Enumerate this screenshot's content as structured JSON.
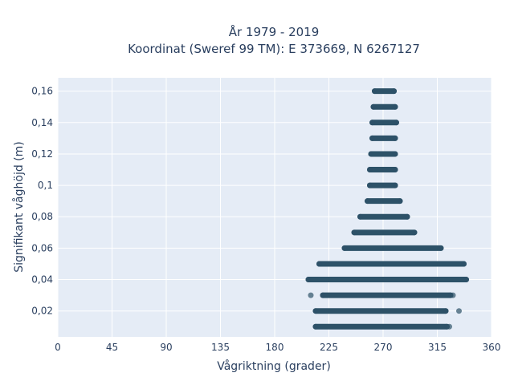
{
  "chart_data": {
    "type": "scatter",
    "title_line1": "År 1979 - 2019",
    "title_line2": "Koordinat (Sweref 99 TM): E 373669, N 6267127",
    "xlabel": "Vågriktning (grader)",
    "ylabel": "Signifikant våghöjd (m)",
    "xlim": [
      0,
      360
    ],
    "ylim": [
      0.0035,
      0.1685
    ],
    "xticks": [
      0,
      45,
      90,
      135,
      180,
      225,
      270,
      315,
      360
    ],
    "xtick_labels": [
      "0",
      "45",
      "90",
      "135",
      "180",
      "225",
      "270",
      "315",
      "360"
    ],
    "yticks": [
      0.02,
      0.04,
      0.06,
      0.08,
      0.1,
      0.12,
      0.14,
      0.16
    ],
    "ytick_labels": [
      "0,02",
      "0,04",
      "0,06",
      "0,08",
      "0,1",
      "0,12",
      "0,14",
      "0,16"
    ],
    "grid": true,
    "marker_color": "#2d5268",
    "plot_background": "#e5ecf6",
    "bands": [
      {
        "y": 0.01,
        "x_min": 214,
        "x_max": 323,
        "outliers": [
          325
        ]
      },
      {
        "y": 0.02,
        "x_min": 214,
        "x_max": 322,
        "outliers": [
          333
        ]
      },
      {
        "y": 0.03,
        "x_min": 220,
        "x_max": 326,
        "outliers": [
          210,
          328
        ]
      },
      {
        "y": 0.04,
        "x_min": 208,
        "x_max": 339,
        "outliers": []
      },
      {
        "y": 0.05,
        "x_min": 217,
        "x_max": 337,
        "outliers": []
      },
      {
        "y": 0.06,
        "x_min": 238,
        "x_max": 318,
        "outliers": []
      },
      {
        "y": 0.07,
        "x_min": 246,
        "x_max": 296,
        "outliers": []
      },
      {
        "y": 0.08,
        "x_min": 251,
        "x_max": 290,
        "outliers": []
      },
      {
        "y": 0.09,
        "x_min": 257,
        "x_max": 284,
        "outliers": []
      },
      {
        "y": 0.1,
        "x_min": 259,
        "x_max": 280,
        "outliers": []
      },
      {
        "y": 0.11,
        "x_min": 259,
        "x_max": 280,
        "outliers": []
      },
      {
        "y": 0.12,
        "x_min": 260,
        "x_max": 280,
        "outliers": []
      },
      {
        "y": 0.13,
        "x_min": 261,
        "x_max": 280,
        "outliers": []
      },
      {
        "y": 0.14,
        "x_min": 261,
        "x_max": 281,
        "outliers": []
      },
      {
        "y": 0.15,
        "x_min": 262,
        "x_max": 280,
        "outliers": []
      },
      {
        "y": 0.16,
        "x_min": 263,
        "x_max": 279,
        "outliers": []
      }
    ]
  }
}
